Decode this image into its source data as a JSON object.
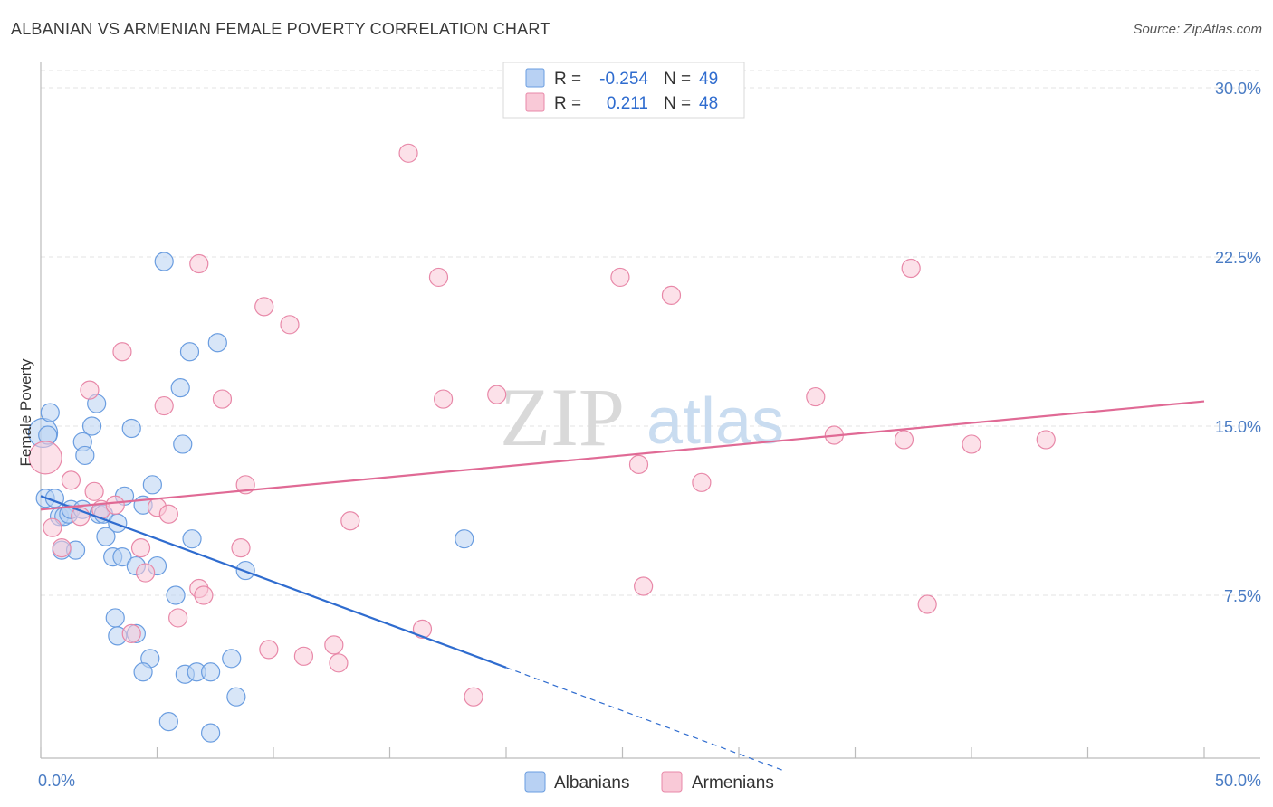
{
  "chart_data": {
    "type": "scatter",
    "title": "ALBANIAN VS ARMENIAN FEMALE POVERTY CORRELATION CHART",
    "source": "Source: ZipAtlas.com",
    "xlabel": "",
    "ylabel": "Female Poverty",
    "xlim": [
      0,
      50
    ],
    "ylim": [
      0,
      31
    ],
    "x_tick_labels": [
      "0.0%",
      "50.0%"
    ],
    "y_ticks": [
      7.5,
      15.0,
      22.5,
      30.0
    ],
    "y_tick_labels": [
      "7.5%",
      "15.0%",
      "22.5%",
      "30.0%"
    ],
    "watermark": {
      "zip": "ZIP",
      "atlas": "atlas"
    },
    "legend": {
      "r_label": "R =",
      "n_label": "N =",
      "rows": [
        {
          "r": "-0.254",
          "n": "49",
          "color": "#b8d1f3",
          "stroke": "#6a9de0"
        },
        {
          "r": "0.211",
          "n": "48",
          "color": "#f9c9d7",
          "stroke": "#e888a8"
        }
      ]
    },
    "series": [
      {
        "name": "Albanians",
        "color": "#b8d1f3",
        "stroke": "#6a9de0",
        "line_color": "#2f6ccf",
        "trend": {
          "x0": 0,
          "y0": 11.9,
          "x1": 20,
          "y1": 4.3,
          "dash_to_x": 32,
          "dash_to_y": -0.3
        },
        "points": [
          [
            0.1,
            14.7
          ],
          [
            0.4,
            15.6
          ],
          [
            0.2,
            11.8
          ],
          [
            0.6,
            11.8
          ],
          [
            0.8,
            11.0
          ],
          [
            1.0,
            11.0
          ],
          [
            1.2,
            11.1
          ],
          [
            1.3,
            11.3
          ],
          [
            1.8,
            11.3
          ],
          [
            2.5,
            11.1
          ],
          [
            0.9,
            9.5
          ],
          [
            1.5,
            9.5
          ],
          [
            1.8,
            14.3
          ],
          [
            1.9,
            13.7
          ],
          [
            2.2,
            15.0
          ],
          [
            2.4,
            16.0
          ],
          [
            2.7,
            11.1
          ],
          [
            2.8,
            10.1
          ],
          [
            3.1,
            9.2
          ],
          [
            3.3,
            10.7
          ],
          [
            3.5,
            9.2
          ],
          [
            3.6,
            11.9
          ],
          [
            3.9,
            14.9
          ],
          [
            4.1,
            8.8
          ],
          [
            4.4,
            11.5
          ],
          [
            4.8,
            12.4
          ],
          [
            5.0,
            8.8
          ],
          [
            3.2,
            6.5
          ],
          [
            3.3,
            5.7
          ],
          [
            4.1,
            5.8
          ],
          [
            4.7,
            4.7
          ],
          [
            4.4,
            4.1
          ],
          [
            5.3,
            22.3
          ],
          [
            5.8,
            7.5
          ],
          [
            6.0,
            16.7
          ],
          [
            6.1,
            14.2
          ],
          [
            6.4,
            18.3
          ],
          [
            6.5,
            10.0
          ],
          [
            6.2,
            4.0
          ],
          [
            6.7,
            4.1
          ],
          [
            7.3,
            4.1
          ],
          [
            7.6,
            18.7
          ],
          [
            8.2,
            4.7
          ],
          [
            8.4,
            3.0
          ],
          [
            8.8,
            8.6
          ],
          [
            5.5,
            1.9
          ],
          [
            7.3,
            1.4
          ],
          [
            18.2,
            10.0
          ],
          [
            0.3,
            14.6
          ]
        ],
        "radius": [
          16,
          10,
          10,
          10,
          10,
          10,
          10,
          10,
          10,
          10,
          10,
          10,
          10,
          10,
          10,
          10,
          10,
          10,
          10,
          10,
          10,
          10,
          10,
          10,
          10,
          10,
          10,
          10,
          10,
          10,
          10,
          10,
          10,
          10,
          10,
          10,
          10,
          10,
          10,
          10,
          10,
          10,
          10,
          10,
          10,
          10,
          10,
          10,
          10
        ]
      },
      {
        "name": "Armenians",
        "color": "#f9c9d7",
        "stroke": "#e888a8",
        "line_color": "#e06a95",
        "trend": {
          "x0": 0,
          "y0": 11.3,
          "x1": 50,
          "y1": 16.1
        },
        "points": [
          [
            0.2,
            13.6
          ],
          [
            0.5,
            10.5
          ],
          [
            0.9,
            9.6
          ],
          [
            1.3,
            12.6
          ],
          [
            1.7,
            11.0
          ],
          [
            2.1,
            16.6
          ],
          [
            2.3,
            12.1
          ],
          [
            2.6,
            11.3
          ],
          [
            3.2,
            11.5
          ],
          [
            3.5,
            18.3
          ],
          [
            3.9,
            5.8
          ],
          [
            4.3,
            9.6
          ],
          [
            4.5,
            8.5
          ],
          [
            5.0,
            11.4
          ],
          [
            5.3,
            15.9
          ],
          [
            5.5,
            11.1
          ],
          [
            5.9,
            6.5
          ],
          [
            6.8,
            7.8
          ],
          [
            7.0,
            7.5
          ],
          [
            6.8,
            22.2
          ],
          [
            7.8,
            16.2
          ],
          [
            8.6,
            9.6
          ],
          [
            8.8,
            12.4
          ],
          [
            9.6,
            20.3
          ],
          [
            9.8,
            5.1
          ],
          [
            10.7,
            19.5
          ],
          [
            11.3,
            4.8
          ],
          [
            12.6,
            5.3
          ],
          [
            12.8,
            4.5
          ],
          [
            13.3,
            10.8
          ],
          [
            15.8,
            27.1
          ],
          [
            16.4,
            6.0
          ],
          [
            17.1,
            21.6
          ],
          [
            17.3,
            16.2
          ],
          [
            18.6,
            3.0
          ],
          [
            19.6,
            16.4
          ],
          [
            24.9,
            21.6
          ],
          [
            25.7,
            13.3
          ],
          [
            25.9,
            7.9
          ],
          [
            27.1,
            20.8
          ],
          [
            28.4,
            12.5
          ],
          [
            33.3,
            16.3
          ],
          [
            34.1,
            14.6
          ],
          [
            37.1,
            14.4
          ],
          [
            37.4,
            22.0
          ],
          [
            38.1,
            7.1
          ],
          [
            40.0,
            14.2
          ],
          [
            43.2,
            14.4
          ]
        ],
        "radius": [
          18,
          10,
          10,
          10,
          10,
          10,
          10,
          10,
          10,
          10,
          10,
          10,
          10,
          10,
          10,
          10,
          10,
          10,
          10,
          10,
          10,
          10,
          10,
          10,
          10,
          10,
          10,
          10,
          10,
          10,
          10,
          10,
          10,
          10,
          10,
          10,
          10,
          10,
          10,
          10,
          10,
          10,
          10,
          10,
          10,
          10,
          10,
          10
        ]
      }
    ]
  }
}
